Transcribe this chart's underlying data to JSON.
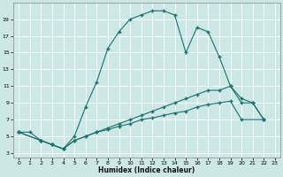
{
  "xlabel": "Humidex (Indice chaleur)",
  "bg_color": "#cce8e4",
  "grid_color": "#b8d8d4",
  "line_color": "#1a7070",
  "curve1_x": [
    0,
    1,
    2,
    3,
    4,
    5,
    6,
    7,
    8,
    9,
    10,
    11,
    12,
    13,
    14,
    15,
    16,
    17,
    18,
    19,
    20,
    21,
    22
  ],
  "curve1_y": [
    5.5,
    5.5,
    4.5,
    4.0,
    3.5,
    5.0,
    8.5,
    11.5,
    15.5,
    17.5,
    19.0,
    19.5,
    20.0,
    20.0,
    19.5,
    15.0,
    18.0,
    17.5,
    14.5,
    11.0,
    9.0,
    9.0,
    7.0
  ],
  "curve2_x": [
    0,
    2,
    3,
    4,
    5,
    6,
    7,
    8,
    9,
    10,
    11,
    12,
    13,
    14,
    15,
    16,
    17,
    18,
    19,
    20,
    21,
    22
  ],
  "curve2_y": [
    5.5,
    4.5,
    4.0,
    3.5,
    4.5,
    5.0,
    5.5,
    6.0,
    6.5,
    7.0,
    7.5,
    8.0,
    8.5,
    9.0,
    9.5,
    10.0,
    10.5,
    10.5,
    11.0,
    9.5,
    9.0,
    7.0
  ],
  "curve3_x": [
    0,
    2,
    3,
    4,
    5,
    6,
    7,
    8,
    9,
    10,
    11,
    12,
    13,
    14,
    15,
    16,
    17,
    18,
    19,
    20,
    22
  ],
  "curve3_y": [
    5.5,
    4.5,
    4.0,
    3.5,
    4.5,
    5.0,
    5.5,
    5.8,
    6.2,
    6.5,
    7.0,
    7.2,
    7.5,
    7.8,
    8.0,
    8.5,
    8.8,
    9.0,
    9.2,
    7.0,
    7.0
  ],
  "xlim": [
    -0.5,
    23.5
  ],
  "ylim": [
    2.5,
    21.0
  ],
  "yticks": [
    3,
    5,
    7,
    9,
    11,
    13,
    15,
    17,
    19
  ],
  "xticks": [
    0,
    1,
    2,
    3,
    4,
    5,
    6,
    7,
    8,
    9,
    10,
    11,
    12,
    13,
    14,
    15,
    16,
    17,
    18,
    19,
    20,
    21,
    22,
    23
  ]
}
